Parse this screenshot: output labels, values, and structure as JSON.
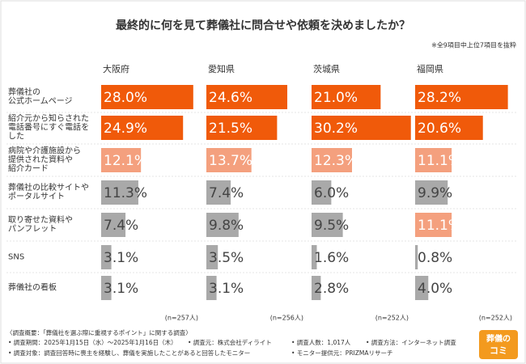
{
  "chart_data": {
    "type": "bar-panels",
    "title": "最終的に何を見て葬儀社に問合せや依頼を決めましたか？",
    "note": "※全9項目中上位7項目を抜粋",
    "categories": [
      "葬儀社の\n公式ホームページ",
      "紹介元から知らされた\n電話番号にすぐ電話を\nした",
      "病院や介護施設から\n提供された資料や\n紹介カード",
      "葬儀社の比較サイトや\nポータルサイト",
      "取り寄せた資料や\nパンフレット",
      "SNS",
      "葬儀社の看板"
    ],
    "xlim": [
      0,
      31
    ],
    "series": [
      {
        "name": "大阪府",
        "n_label": "(n=257人)",
        "values": [
          28.0,
          24.9,
          12.1,
          11.3,
          7.4,
          3.1,
          3.1
        ],
        "value_labels": [
          "28.0%",
          "24.9%",
          "12.1%",
          "11.3%",
          "7.4%",
          "3.1%",
          "3.1%"
        ],
        "colors": [
          "#f05a0a",
          "#f05a0a",
          "#f4a07e",
          "#a9a9a9",
          "#a9a9a9",
          "#a9a9a9",
          "#a9a9a9"
        ]
      },
      {
        "name": "愛知県",
        "n_label": "(n=256人)",
        "values": [
          24.6,
          21.5,
          13.7,
          7.4,
          9.8,
          3.5,
          3.1
        ],
        "value_labels": [
          "24.6%",
          "21.5%",
          "13.7%",
          "7.4%",
          "9.8%",
          "3.5%",
          "3.1%"
        ],
        "colors": [
          "#f05a0a",
          "#f05a0a",
          "#f4a07e",
          "#a9a9a9",
          "#a9a9a9",
          "#a9a9a9",
          "#a9a9a9"
        ]
      },
      {
        "name": "茨城県",
        "n_label": "(n=252人)",
        "values": [
          21.0,
          30.2,
          12.3,
          6.0,
          9.5,
          1.6,
          2.8
        ],
        "value_labels": [
          "21.0%",
          "30.2%",
          "12.3%",
          "6.0%",
          "9.5%",
          "1.6%",
          "2.8%"
        ],
        "colors": [
          "#f05a0a",
          "#f05a0a",
          "#f4a07e",
          "#a9a9a9",
          "#a9a9a9",
          "#a9a9a9",
          "#a9a9a9"
        ]
      },
      {
        "name": "福岡県",
        "n_label": "(n=252人)",
        "values": [
          28.2,
          20.6,
          11.1,
          9.9,
          11.1,
          0.8,
          4.0
        ],
        "value_labels": [
          "28.2%",
          "20.6%",
          "11.1%",
          "9.9%",
          "11.1%",
          "0.8%",
          "4.0%"
        ],
        "colors": [
          "#f05a0a",
          "#f05a0a",
          "#f4a07e",
          "#a9a9a9",
          "#f4a07e",
          "#a9a9a9",
          "#a9a9a9"
        ]
      }
    ]
  },
  "footer": {
    "heading": "〈調査概要：「葬儀社を選ぶ際に重視するポイント」に関する調査〉",
    "items": [
      "• 調査期間：2025年1月15日（水）〜2025年1月16日（木）",
      "• 調査元：株式会社ディライト",
      "• 調査人数：1,017人",
      "• 調査方法：インターネット調査",
      "• 調査対象：調査回答時に喪主を経験し、葬儀を実施したことがあると回答したモニター",
      "• モニター提供元：PRIZMAリサーチ"
    ]
  },
  "logo": {
    "top": "葬儀の",
    "bottom": "コミ"
  }
}
